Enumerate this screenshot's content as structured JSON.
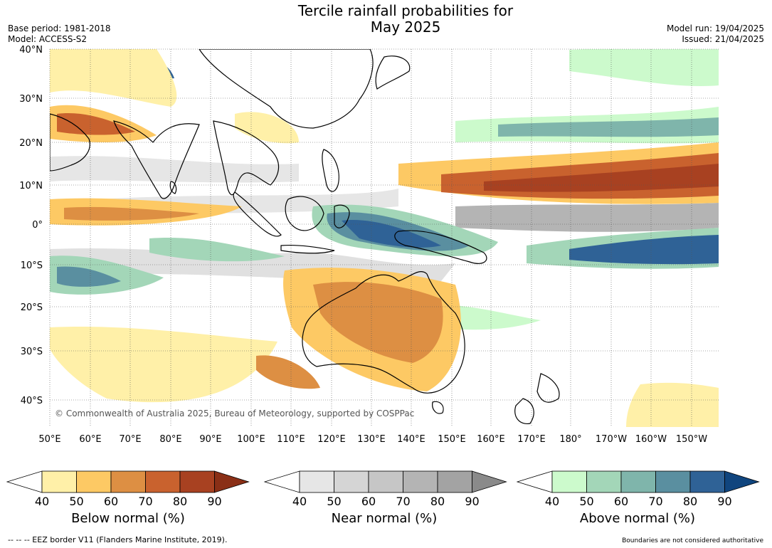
{
  "title_line1": "Tercile rainfall probabilities for",
  "title_line2": "May 2025",
  "base_period": "Base period: 1981-2018",
  "model": "Model: ACCESS-S2",
  "model_run": "Model run: 19/04/2025",
  "issued": "Issued: 21/04/2025",
  "copyright": "© Commonwealth of Australia 2025, Bureau of Meteorology, supported by COSPPac",
  "lat_labels": [
    "40°N",
    "30°N",
    "20°N",
    "10°N",
    "0°",
    "10°S",
    "20°S",
    "30°S",
    "40°S"
  ],
  "lon_labels": [
    "50°E",
    "60°E",
    "70°E",
    "80°E",
    "90°E",
    "100°E",
    "110°E",
    "120°E",
    "130°E",
    "140°E",
    "150°E",
    "160°E",
    "170°E",
    "180°",
    "170°W",
    "160°W",
    "150°W"
  ],
  "colorbars": [
    {
      "label": "Below normal (%)",
      "colors": [
        "#fff0a8",
        "#fdc964",
        "#dd8f43",
        "#c9622e",
        "#a84121",
        "#8a2f16"
      ]
    },
    {
      "label": "Near normal (%)",
      "colors": [
        "#e6e6e6",
        "#d5d5d5",
        "#c6c6c6",
        "#b4b4b4",
        "#a3a3a3",
        "#8a8a8a"
      ]
    },
    {
      "label": "Above normal (%)",
      "colors": [
        "#ccfacc",
        "#a3d6b8",
        "#7fb5ab",
        "#5a8fa0",
        "#2f6296",
        "#10457e"
      ]
    }
  ],
  "ticks": [
    "40",
    "50",
    "60",
    "70",
    "80",
    "90"
  ],
  "footer_left": "--  --  -- EEZ border V11 (Flanders Marine Institute, 2019).",
  "footer_right": "Boundaries are not considered authoritative"
}
